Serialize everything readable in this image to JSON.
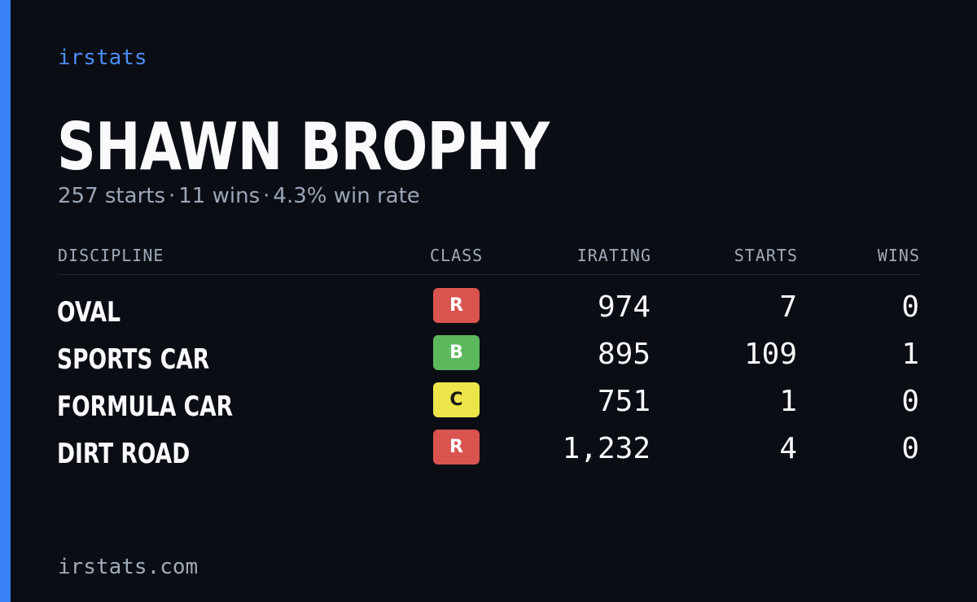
{
  "brand": "irstats",
  "player": {
    "name": "SHAWN BROPHY",
    "starts_text": "257 starts",
    "wins_text": "11 wins",
    "win_rate_text": "4.3% win rate",
    "separator": "·"
  },
  "table": {
    "headers": {
      "discipline": "DISCIPLINE",
      "class": "CLASS",
      "irating": "IRATING",
      "starts": "STARTS",
      "wins": "WINS"
    },
    "rows": [
      {
        "discipline": "OVAL",
        "class": "R",
        "class_bg": "#d9534f",
        "class_fg": "#ffffff",
        "irating": "974",
        "starts": "7",
        "wins": "0"
      },
      {
        "discipline": "SPORTS CAR",
        "class": "B",
        "class_bg": "#5cb85c",
        "class_fg": "#ffffff",
        "irating": "895",
        "starts": "109",
        "wins": "1"
      },
      {
        "discipline": "FORMULA CAR",
        "class": "C",
        "class_bg": "#ece54a",
        "class_fg": "#1a1a1a",
        "irating": "751",
        "starts": "1",
        "wins": "0"
      },
      {
        "discipline": "DIRT ROAD",
        "class": "R",
        "class_bg": "#d9534f",
        "class_fg": "#ffffff",
        "irating": "1,232",
        "starts": "4",
        "wins": "0"
      }
    ]
  },
  "footer": "irstats.com",
  "colors": {
    "background": "#0a0d14",
    "accent": "#3b82f6"
  }
}
